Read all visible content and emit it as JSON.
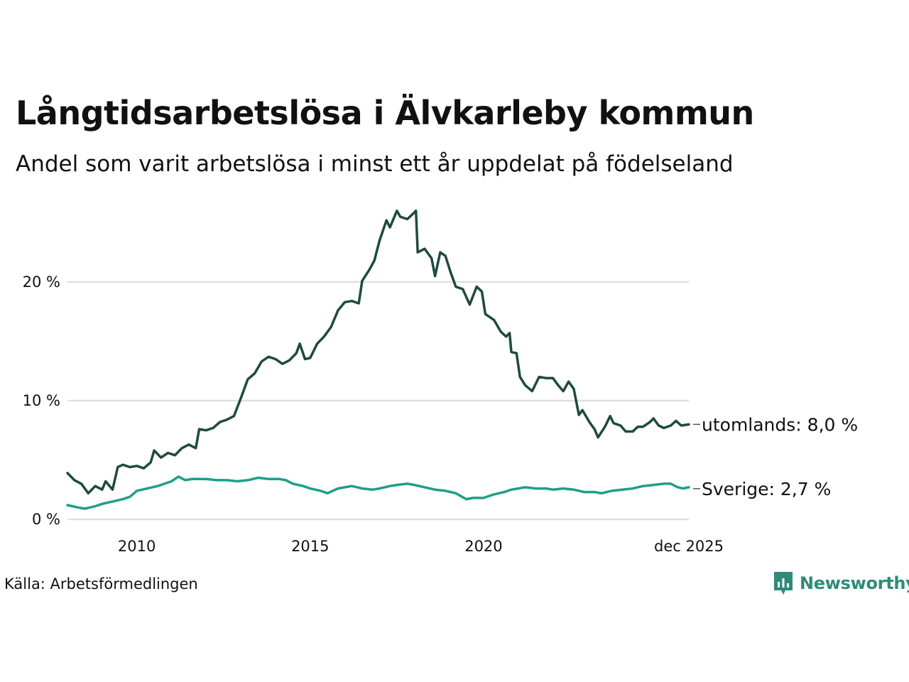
{
  "header": {
    "title": "Långtidsarbetslösa i Älvkarleby kommun",
    "subtitle": "Andel som varit arbetslösa i minst ett år uppdelat på födelseland"
  },
  "footer": {
    "source": "Källa: Arbetsförmedlingen",
    "brand": "Newsworthy"
  },
  "colors": {
    "utomlands": "#1f4a3f",
    "sverige": "#1f9e8a",
    "grid": "#e0e0e0",
    "brand": "#2e8b7a"
  },
  "chart_data": {
    "type": "line",
    "title": "Långtidsarbetslösa i Älvkarleby kommun",
    "subtitle": "Andel som varit arbetslösa i minst ett år uppdelat på födelseland",
    "xlabel": "",
    "ylabel": "",
    "xlim": [
      2008.0,
      2025.92
    ],
    "ylim": [
      0,
      27
    ],
    "x_ticks": [
      {
        "value": 2010,
        "label": "2010"
      },
      {
        "value": 2015,
        "label": "2015"
      },
      {
        "value": 2020,
        "label": "2020"
      },
      {
        "value": 2025.92,
        "label": "dec 2025"
      }
    ],
    "y_ticks": [
      {
        "value": 0,
        "label": "0 %"
      },
      {
        "value": 10,
        "label": "10 %"
      },
      {
        "value": 20,
        "label": "20 %"
      }
    ],
    "grid": true,
    "series": [
      {
        "name": "utomlands",
        "end_label": "utomlands: 8,0 %",
        "points": [
          [
            2008.0,
            3.9
          ],
          [
            2008.2,
            3.3
          ],
          [
            2008.4,
            3.0
          ],
          [
            2008.5,
            2.6
          ],
          [
            2008.6,
            2.2
          ],
          [
            2008.8,
            2.8
          ],
          [
            2009.0,
            2.5
          ],
          [
            2009.1,
            3.2
          ],
          [
            2009.3,
            2.5
          ],
          [
            2009.45,
            4.4
          ],
          [
            2009.6,
            4.6
          ],
          [
            2009.8,
            4.4
          ],
          [
            2010.0,
            4.5
          ],
          [
            2010.2,
            4.3
          ],
          [
            2010.4,
            4.8
          ],
          [
            2010.5,
            5.8
          ],
          [
            2010.7,
            5.2
          ],
          [
            2010.9,
            5.6
          ],
          [
            2011.1,
            5.4
          ],
          [
            2011.3,
            6.0
          ],
          [
            2011.5,
            6.3
          ],
          [
            2011.7,
            6.0
          ],
          [
            2011.8,
            7.6
          ],
          [
            2012.0,
            7.5
          ],
          [
            2012.2,
            7.7
          ],
          [
            2012.4,
            8.2
          ],
          [
            2012.6,
            8.4
          ],
          [
            2012.8,
            8.7
          ],
          [
            2013.0,
            10.2
          ],
          [
            2013.2,
            11.8
          ],
          [
            2013.4,
            12.3
          ],
          [
            2013.6,
            13.3
          ],
          [
            2013.8,
            13.7
          ],
          [
            2014.0,
            13.5
          ],
          [
            2014.2,
            13.1
          ],
          [
            2014.4,
            13.4
          ],
          [
            2014.6,
            14.0
          ],
          [
            2014.7,
            14.8
          ],
          [
            2014.85,
            13.5
          ],
          [
            2015.0,
            13.6
          ],
          [
            2015.2,
            14.8
          ],
          [
            2015.4,
            15.4
          ],
          [
            2015.6,
            16.2
          ],
          [
            2015.8,
            17.6
          ],
          [
            2016.0,
            18.3
          ],
          [
            2016.2,
            18.4
          ],
          [
            2016.4,
            18.2
          ],
          [
            2016.5,
            20.1
          ],
          [
            2016.7,
            21.0
          ],
          [
            2016.85,
            21.8
          ],
          [
            2017.0,
            23.5
          ],
          [
            2017.2,
            25.2
          ],
          [
            2017.3,
            24.6
          ],
          [
            2017.5,
            26.0
          ],
          [
            2017.6,
            25.5
          ],
          [
            2017.8,
            25.3
          ],
          [
            2017.95,
            25.7
          ],
          [
            2018.05,
            26.0
          ],
          [
            2018.1,
            22.5
          ],
          [
            2018.3,
            22.8
          ],
          [
            2018.5,
            22.0
          ],
          [
            2018.6,
            20.5
          ],
          [
            2018.75,
            22.5
          ],
          [
            2018.9,
            22.2
          ],
          [
            2019.05,
            20.8
          ],
          [
            2019.2,
            19.6
          ],
          [
            2019.4,
            19.4
          ],
          [
            2019.6,
            18.1
          ],
          [
            2019.8,
            19.6
          ],
          [
            2019.95,
            19.2
          ],
          [
            2020.05,
            17.3
          ],
          [
            2020.3,
            16.8
          ],
          [
            2020.5,
            15.8
          ],
          [
            2020.65,
            15.4
          ],
          [
            2020.75,
            15.7
          ],
          [
            2020.8,
            14.1
          ],
          [
            2020.95,
            14.0
          ],
          [
            2021.05,
            12.0
          ],
          [
            2021.2,
            11.3
          ],
          [
            2021.4,
            10.8
          ],
          [
            2021.6,
            12.0
          ],
          [
            2021.8,
            11.9
          ],
          [
            2022.0,
            11.9
          ],
          [
            2022.15,
            11.3
          ],
          [
            2022.3,
            10.8
          ],
          [
            2022.45,
            11.6
          ],
          [
            2022.6,
            11.0
          ],
          [
            2022.75,
            8.8
          ],
          [
            2022.85,
            9.2
          ],
          [
            2023.05,
            8.2
          ],
          [
            2023.2,
            7.6
          ],
          [
            2023.3,
            6.9
          ],
          [
            2023.5,
            7.8
          ],
          [
            2023.65,
            8.7
          ],
          [
            2023.75,
            8.1
          ],
          [
            2023.95,
            7.9
          ],
          [
            2024.1,
            7.4
          ],
          [
            2024.3,
            7.4
          ],
          [
            2024.45,
            7.8
          ],
          [
            2024.6,
            7.8
          ],
          [
            2024.8,
            8.2
          ],
          [
            2024.9,
            8.5
          ],
          [
            2025.05,
            7.9
          ],
          [
            2025.2,
            7.7
          ],
          [
            2025.4,
            7.9
          ],
          [
            2025.55,
            8.3
          ],
          [
            2025.7,
            7.9
          ],
          [
            2025.92,
            8.0
          ]
        ]
      },
      {
        "name": "Sverige",
        "end_label": "Sverige: 2,7 %",
        "points": [
          [
            2008.0,
            1.2
          ],
          [
            2008.3,
            1.0
          ],
          [
            2008.5,
            0.9
          ],
          [
            2008.8,
            1.1
          ],
          [
            2009.0,
            1.3
          ],
          [
            2009.3,
            1.5
          ],
          [
            2009.6,
            1.7
          ],
          [
            2009.8,
            1.9
          ],
          [
            2010.0,
            2.4
          ],
          [
            2010.3,
            2.6
          ],
          [
            2010.6,
            2.8
          ],
          [
            2010.8,
            3.0
          ],
          [
            2011.0,
            3.2
          ],
          [
            2011.2,
            3.6
          ],
          [
            2011.4,
            3.3
          ],
          [
            2011.6,
            3.4
          ],
          [
            2012.0,
            3.4
          ],
          [
            2012.3,
            3.3
          ],
          [
            2012.6,
            3.3
          ],
          [
            2012.9,
            3.2
          ],
          [
            2013.2,
            3.3
          ],
          [
            2013.5,
            3.5
          ],
          [
            2013.8,
            3.4
          ],
          [
            2014.1,
            3.4
          ],
          [
            2014.3,
            3.3
          ],
          [
            2014.5,
            3.0
          ],
          [
            2014.8,
            2.8
          ],
          [
            2015.0,
            2.6
          ],
          [
            2015.3,
            2.4
          ],
          [
            2015.5,
            2.2
          ],
          [
            2015.8,
            2.6
          ],
          [
            2016.0,
            2.7
          ],
          [
            2016.2,
            2.8
          ],
          [
            2016.5,
            2.6
          ],
          [
            2016.8,
            2.5
          ],
          [
            2017.0,
            2.6
          ],
          [
            2017.3,
            2.8
          ],
          [
            2017.5,
            2.9
          ],
          [
            2017.8,
            3.0
          ],
          [
            2018.0,
            2.9
          ],
          [
            2018.3,
            2.7
          ],
          [
            2018.6,
            2.5
          ],
          [
            2018.9,
            2.4
          ],
          [
            2019.2,
            2.2
          ],
          [
            2019.5,
            1.7
          ],
          [
            2019.7,
            1.8
          ],
          [
            2020.0,
            1.8
          ],
          [
            2020.3,
            2.1
          ],
          [
            2020.6,
            2.3
          ],
          [
            2020.8,
            2.5
          ],
          [
            2021.0,
            2.6
          ],
          [
            2021.2,
            2.7
          ],
          [
            2021.5,
            2.6
          ],
          [
            2021.8,
            2.6
          ],
          [
            2022.0,
            2.5
          ],
          [
            2022.3,
            2.6
          ],
          [
            2022.6,
            2.5
          ],
          [
            2022.9,
            2.3
          ],
          [
            2023.2,
            2.3
          ],
          [
            2023.4,
            2.2
          ],
          [
            2023.7,
            2.4
          ],
          [
            2024.0,
            2.5
          ],
          [
            2024.3,
            2.6
          ],
          [
            2024.6,
            2.8
          ],
          [
            2024.9,
            2.9
          ],
          [
            2025.2,
            3.0
          ],
          [
            2025.4,
            3.0
          ],
          [
            2025.6,
            2.7
          ],
          [
            2025.75,
            2.6
          ],
          [
            2025.92,
            2.7
          ]
        ]
      }
    ]
  }
}
